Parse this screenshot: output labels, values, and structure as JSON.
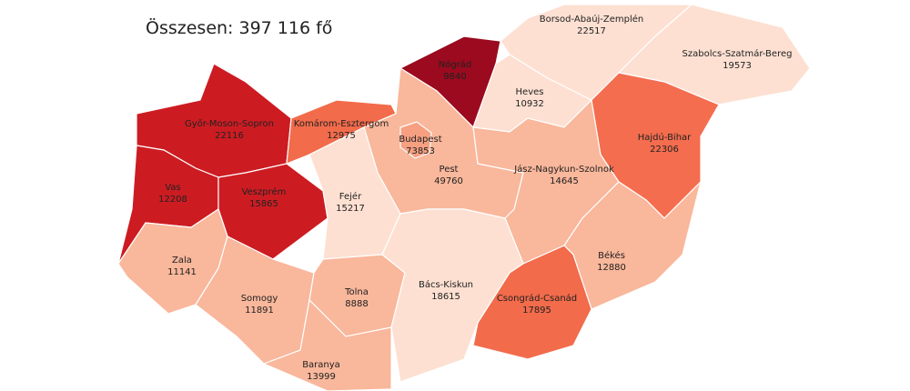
{
  "total": "Összesen: 397 116 fő",
  "counties": [
    {
      "name": "Borsod-Abaúj-Zemplén",
      "value": 22517,
      "color": "#fde0d2"
    },
    {
      "name": "Szabolcs-Szatmár-Bereg",
      "value": 19573,
      "color": "#fde0d2"
    },
    {
      "name": "Nógrád",
      "value": 9840,
      "color": "#9b0a1e"
    },
    {
      "name": "Heves",
      "value": 10932,
      "color": "#fde0d2"
    },
    {
      "name": "Győr-Moson-Sopron",
      "value": 22116,
      "color": "#cc1c22"
    },
    {
      "name": "Komárom-Esztergom",
      "value": 12975,
      "color": "#f26b4b"
    },
    {
      "name": "Pest",
      "value": 49760,
      "color": "#f9b79b"
    },
    {
      "name": "Budapest",
      "value": 73853,
      "color": "#f6a081"
    },
    {
      "name": "Jász-Nagykun-Szolnok",
      "value": 14645,
      "color": "#f9b79b"
    },
    {
      "name": "Hajdú-Bihar",
      "value": 22306,
      "color": "#f46d4e"
    },
    {
      "name": "Vas",
      "value": 12208,
      "color": "#cc1c22"
    },
    {
      "name": "Veszprém",
      "value": 15865,
      "color": "#cc1c22"
    },
    {
      "name": "Fejér",
      "value": 15217,
      "color": "#fde0d2"
    },
    {
      "name": "Zala",
      "value": 11141,
      "color": "#f9b79b"
    },
    {
      "name": "Somogy",
      "value": 11891,
      "color": "#f9b79b"
    },
    {
      "name": "Tolna",
      "value": 8888,
      "color": "#f9b79b"
    },
    {
      "name": "Bács-Kiskun",
      "value": 18615,
      "color": "#fde0d2"
    },
    {
      "name": "Békés",
      "value": 12880,
      "color": "#f9b79b"
    },
    {
      "name": "Csongrád-Csanád",
      "value": 17895,
      "color": "#f26b4b"
    },
    {
      "name": "Baranya",
      "value": 13999,
      "color": "#f9b79b"
    }
  ]
}
